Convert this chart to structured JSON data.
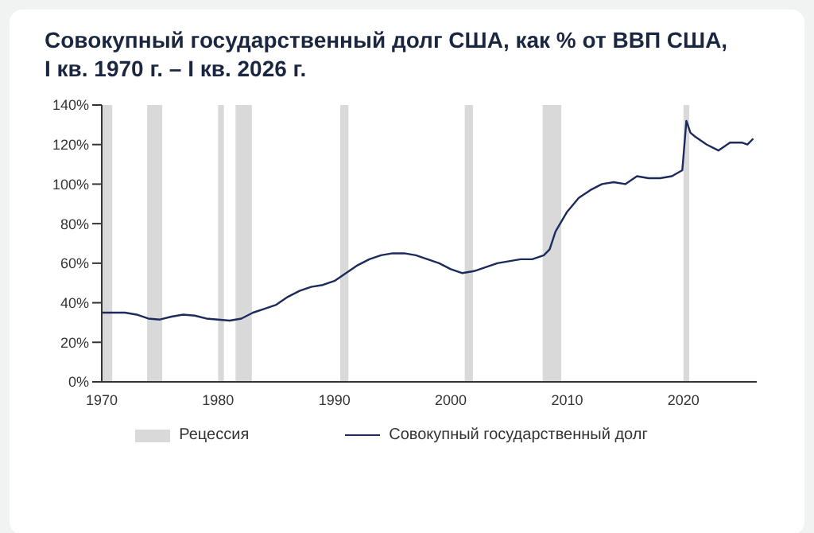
{
  "chart_data": {
    "type": "line",
    "title": "Совокупный государственный долг США, как % от ВВП США,\nI кв. 1970 г. – I кв. 2026 г.",
    "x": [
      1970,
      1971,
      1972,
      1973,
      1974,
      1975,
      1976,
      1977,
      1978,
      1979,
      1980,
      1981,
      1982,
      1983,
      1984,
      1985,
      1986,
      1987,
      1988,
      1989,
      1990,
      1991,
      1992,
      1993,
      1994,
      1995,
      1996,
      1997,
      1998,
      1999,
      2000,
      2001,
      2002,
      2003,
      2004,
      2005,
      2006,
      2007,
      2008,
      2008.5,
      2009,
      2010,
      2011,
      2012,
      2013,
      2014,
      2015,
      2016,
      2017,
      2018,
      2019,
      2019.9,
      2020.25,
      2020.6,
      2021,
      2022,
      2023,
      2024,
      2025,
      2025.5,
      2026
    ],
    "series": [
      {
        "name": "Совокупный государственный долг",
        "color": "#1c2a5c",
        "values": [
          35,
          35,
          35,
          34,
          32,
          31.5,
          33,
          34,
          33.5,
          32,
          31.5,
          31,
          32,
          35,
          37,
          39,
          43,
          46,
          48,
          49,
          51,
          55,
          59,
          62,
          64,
          65,
          65,
          64,
          62,
          60,
          57,
          55,
          56,
          58,
          60,
          61,
          62,
          62,
          64,
          67,
          76,
          86,
          93,
          97,
          100,
          101,
          100,
          104,
          103,
          103,
          104,
          107,
          132,
          126,
          124,
          120,
          117,
          121,
          121,
          120,
          123
        ]
      }
    ],
    "bands": [
      {
        "axis": "x",
        "from": 1970,
        "to": 1970.9,
        "label": "Рецессия",
        "color": "#d9d9d9"
      },
      {
        "axis": "x",
        "from": 1973.9,
        "to": 1975.2,
        "color": "#d9d9d9"
      },
      {
        "axis": "x",
        "from": 1980,
        "to": 1980.5,
        "color": "#d9d9d9"
      },
      {
        "axis": "x",
        "from": 1981.5,
        "to": 1982.9,
        "color": "#d9d9d9"
      },
      {
        "axis": "x",
        "from": 1990.5,
        "to": 1991.2,
        "color": "#d9d9d9"
      },
      {
        "axis": "x",
        "from": 2001.2,
        "to": 2001.9,
        "color": "#d9d9d9"
      },
      {
        "axis": "x",
        "from": 2007.9,
        "to": 2009.5,
        "color": "#d9d9d9"
      },
      {
        "axis": "x",
        "from": 2020,
        "to": 2020.5,
        "color": "#d9d9d9"
      }
    ],
    "xlim": [
      1970,
      2026.3
    ],
    "xticks": [
      1970,
      1980,
      1990,
      2000,
      2010,
      2020
    ],
    "ylim": [
      0,
      140
    ],
    "yticks": [
      {
        "value": 0,
        "label": "0%"
      },
      {
        "value": 20,
        "label": "20%"
      },
      {
        "value": 40,
        "label": "40%"
      },
      {
        "value": 60,
        "label": "60%"
      },
      {
        "value": 80,
        "label": "80%"
      },
      {
        "value": 100,
        "label": "100%"
      },
      {
        "value": 120,
        "label": "120%"
      },
      {
        "value": 140,
        "label": "140%"
      }
    ],
    "grid": false,
    "legend": "bottom",
    "marker": "none",
    "line_style": "solid"
  }
}
